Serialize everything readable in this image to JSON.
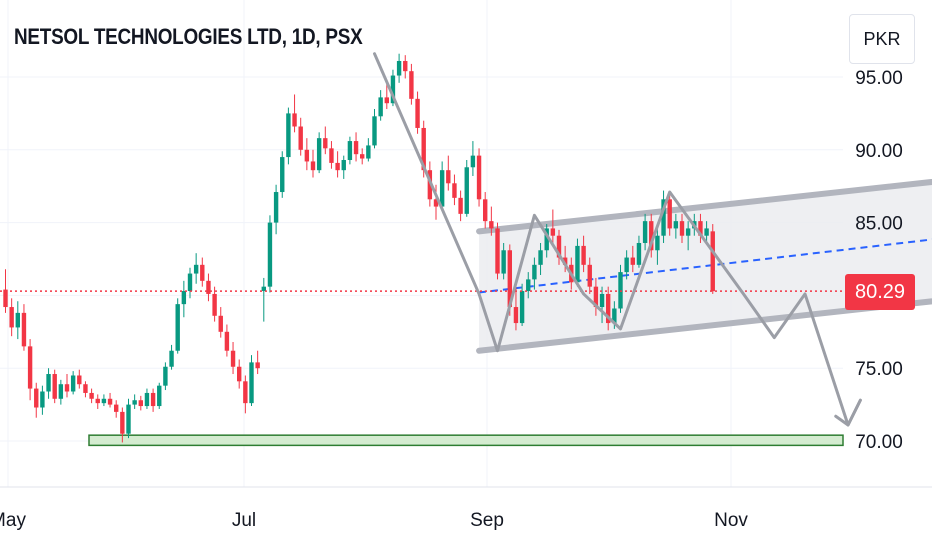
{
  "title": "NETSOL TECHNOLOGIES LTD, 1D, PSX",
  "currency_label": "PKR",
  "last_price_label": "80.29",
  "colors": {
    "up": "#089981",
    "down": "#f23645",
    "drawing": "#9b9ea6",
    "trend_dash": "#2962ff",
    "support_fill": "#d4ecd0",
    "support_stroke": "#2e7d32",
    "grid": "#f0f3fa"
  },
  "chart_data": {
    "type": "candlestick",
    "title": "NETSOL TECHNOLOGIES LTD, 1D, PSX",
    "currency": "PKR",
    "last_price": 80.29,
    "y_ticks": [
      "70.00",
      "75.00",
      "80.00",
      "85.00",
      "90.00",
      "95.00"
    ],
    "y_range": [
      66,
      98
    ],
    "x_ticks": [
      "May",
      "Jul",
      "Sep",
      "Nov"
    ],
    "grid": true,
    "support_zone": [
      69.7,
      70.4
    ],
    "ohlc": [
      [
        80.4,
        81.8,
        78.8,
        79.2
      ],
      [
        79.2,
        79.8,
        77.2,
        77.8
      ],
      [
        77.8,
        79.6,
        77.0,
        78.8
      ],
      [
        78.8,
        79.4,
        76.2,
        76.5
      ],
      [
        76.5,
        77.0,
        72.8,
        73.6
      ],
      [
        73.6,
        74.0,
        71.6,
        72.3
      ],
      [
        72.3,
        73.8,
        71.8,
        73.4
      ],
      [
        73.4,
        75.0,
        72.9,
        74.6
      ],
      [
        74.6,
        74.9,
        72.6,
        72.9
      ],
      [
        72.9,
        74.2,
        72.5,
        73.9
      ],
      [
        73.9,
        74.6,
        73.0,
        73.4
      ],
      [
        73.4,
        74.8,
        73.2,
        74.5
      ],
      [
        74.5,
        74.9,
        73.6,
        73.9
      ],
      [
        73.9,
        74.1,
        73.0,
        73.3
      ],
      [
        73.3,
        73.6,
        72.6,
        72.9
      ],
      [
        72.9,
        73.2,
        72.2,
        72.6
      ],
      [
        72.6,
        73.2,
        72.4,
        72.9
      ],
      [
        72.9,
        73.3,
        72.3,
        72.5
      ],
      [
        72.5,
        72.8,
        71.6,
        72.0
      ],
      [
        72.0,
        72.3,
        69.9,
        70.5
      ],
      [
        70.5,
        72.9,
        70.2,
        72.5
      ],
      [
        72.5,
        73.2,
        72.2,
        72.8
      ],
      [
        72.8,
        73.1,
        72.1,
        72.4
      ],
      [
        72.4,
        73.6,
        72.2,
        73.3
      ],
      [
        73.3,
        73.6,
        72.0,
        72.4
      ],
      [
        72.4,
        74.0,
        72.2,
        73.8
      ],
      [
        73.8,
        75.4,
        73.5,
        75.1
      ],
      [
        75.1,
        76.6,
        74.9,
        76.2
      ],
      [
        76.2,
        79.8,
        76.0,
        79.4
      ],
      [
        79.4,
        81.0,
        78.5,
        80.3
      ],
      [
        80.3,
        81.9,
        79.8,
        81.5
      ],
      [
        81.5,
        82.9,
        80.8,
        82.1
      ],
      [
        82.1,
        82.6,
        80.6,
        81.0
      ],
      [
        81.0,
        81.5,
        79.6,
        80.1
      ],
      [
        80.1,
        80.6,
        78.2,
        78.6
      ],
      [
        78.6,
        79.2,
        77.1,
        77.5
      ],
      [
        77.5,
        78.0,
        75.8,
        76.2
      ],
      [
        76.2,
        76.8,
        74.6,
        75.1
      ],
      [
        75.1,
        75.6,
        73.6,
        74.1
      ],
      [
        74.1,
        74.5,
        71.9,
        72.6
      ],
      [
        72.6,
        75.9,
        72.4,
        75.4
      ],
      [
        75.4,
        76.2,
        74.6,
        75.0
      ],
      [
        80.3,
        81.2,
        78.2,
        80.6
      ],
      [
        80.6,
        85.5,
        80.2,
        85.0
      ],
      [
        85.0,
        87.6,
        84.2,
        87.1
      ],
      [
        87.1,
        89.9,
        86.7,
        89.5
      ],
      [
        89.5,
        92.9,
        89.0,
        92.5
      ],
      [
        92.5,
        93.8,
        91.2,
        91.6
      ],
      [
        91.6,
        92.2,
        89.6,
        90.0
      ],
      [
        90.0,
        90.8,
        88.6,
        89.2
      ],
      [
        89.2,
        90.0,
        88.1,
        88.6
      ],
      [
        88.6,
        91.2,
        88.4,
        90.8
      ],
      [
        90.8,
        91.6,
        89.7,
        90.1
      ],
      [
        90.1,
        90.6,
        88.7,
        89.1
      ],
      [
        89.1,
        89.9,
        88.1,
        88.6
      ],
      [
        88.6,
        89.6,
        88.0,
        89.3
      ],
      [
        89.3,
        90.9,
        89.0,
        90.6
      ],
      [
        90.6,
        91.2,
        89.2,
        89.7
      ],
      [
        89.7,
        90.1,
        89.0,
        89.4
      ],
      [
        89.4,
        90.8,
        89.2,
        90.3
      ],
      [
        90.3,
        92.8,
        90.1,
        92.3
      ],
      [
        92.3,
        94.1,
        92.0,
        93.6
      ],
      [
        93.6,
        94.6,
        92.8,
        93.2
      ],
      [
        93.2,
        95.5,
        93.0,
        95.1
      ],
      [
        95.1,
        96.6,
        94.6,
        96.1
      ],
      [
        96.1,
        96.5,
        94.9,
        95.4
      ],
      [
        95.4,
        95.9,
        93.1,
        93.5
      ],
      [
        93.5,
        94.0,
        91.1,
        91.5
      ],
      [
        91.5,
        92.0,
        88.1,
        88.6
      ],
      [
        88.6,
        89.2,
        86.1,
        86.6
      ],
      [
        86.6,
        87.6,
        85.2,
        86.1
      ],
      [
        86.1,
        89.2,
        85.8,
        88.6
      ],
      [
        88.6,
        89.6,
        87.2,
        87.7
      ],
      [
        87.7,
        88.3,
        86.2,
        86.7
      ],
      [
        86.7,
        87.2,
        85.1,
        85.6
      ],
      [
        85.6,
        89.3,
        85.4,
        88.8
      ],
      [
        88.8,
        90.6,
        88.2,
        89.6
      ],
      [
        89.6,
        90.1,
        86.1,
        86.6
      ],
      [
        86.6,
        87.1,
        84.6,
        85.1
      ],
      [
        85.1,
        86.1,
        84.1,
        84.6
      ],
      [
        84.6,
        85.0,
        81.1,
        81.5
      ],
      [
        81.5,
        83.6,
        81.1,
        83.1
      ],
      [
        83.1,
        83.5,
        78.6,
        79.2
      ],
      [
        79.2,
        80.6,
        77.6,
        78.1
      ],
      [
        78.1,
        80.8,
        77.9,
        80.3
      ],
      [
        80.3,
        81.6,
        79.8,
        81.1
      ],
      [
        81.1,
        82.6,
        80.4,
        82.1
      ],
      [
        82.1,
        83.6,
        81.4,
        83.1
      ],
      [
        83.1,
        84.9,
        82.6,
        84.6
      ],
      [
        84.6,
        85.9,
        83.6,
        84.1
      ],
      [
        84.1,
        84.5,
        82.1,
        82.6
      ],
      [
        82.6,
        83.4,
        81.6,
        82.1
      ],
      [
        82.1,
        82.6,
        80.4,
        80.9
      ],
      [
        80.9,
        83.9,
        80.6,
        83.4
      ],
      [
        83.4,
        84.1,
        81.6,
        82.1
      ],
      [
        82.1,
        82.6,
        80.1,
        80.6
      ],
      [
        80.6,
        81.2,
        78.6,
        79.2
      ],
      [
        79.2,
        80.6,
        78.1,
        80.1
      ],
      [
        80.1,
        80.6,
        77.6,
        78.1
      ],
      [
        78.1,
        79.6,
        77.7,
        79.1
      ],
      [
        79.1,
        82.1,
        78.8,
        81.6
      ],
      [
        81.6,
        83.1,
        81.1,
        82.6
      ],
      [
        82.6,
        83.4,
        81.6,
        82.1
      ],
      [
        82.1,
        84.1,
        81.9,
        83.6
      ],
      [
        83.6,
        85.6,
        83.1,
        85.1
      ],
      [
        85.1,
        85.6,
        82.6,
        83.1
      ],
      [
        83.1,
        84.6,
        82.1,
        84.1
      ],
      [
        84.1,
        87.2,
        83.6,
        86.6
      ],
      [
        86.6,
        87.1,
        84.1,
        84.6
      ],
      [
        84.6,
        85.6,
        83.9,
        85.1
      ],
      [
        85.1,
        85.6,
        83.6,
        84.1
      ],
      [
        84.1,
        85.1,
        83.1,
        84.6
      ],
      [
        84.6,
        85.6,
        84.1,
        85.1
      ],
      [
        85.1,
        85.6,
        83.6,
        84.1
      ],
      [
        84.1,
        85.1,
        83.6,
        84.6
      ],
      [
        84.4,
        84.9,
        80.1,
        80.29
      ]
    ],
    "drawings": {
      "channel_upper": [
        [
          26,
          84.4
        ],
        [
          115,
          88.5
        ]
      ],
      "channel_mid": [
        [
          26,
          80.2
        ],
        [
          115,
          84.6
        ]
      ],
      "channel_lower": [
        [
          26,
          76.2
        ],
        [
          115,
          80.3
        ]
      ],
      "zigzag": [
        [
          64,
          96.6
        ],
        [
          81,
          80.1
        ],
        [
          84,
          76.2
        ],
        [
          90,
          85.5
        ],
        [
          98,
          80.1
        ],
        [
          104,
          77.7
        ],
        [
          112,
          87.1
        ],
        [
          124,
          80.1
        ],
        [
          129,
          77.1
        ],
        [
          134,
          80.1
        ],
        [
          141,
          71.1
        ],
        [
          143,
          72.8
        ]
      ],
      "arrow_head": [
        [
          139,
          71.7
        ],
        [
          141,
          71.1
        ],
        [
          143,
          72.8
        ]
      ]
    }
  }
}
